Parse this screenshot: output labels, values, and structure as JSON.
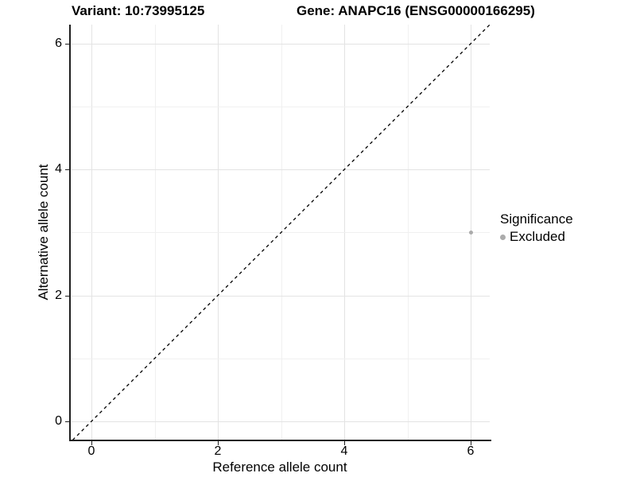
{
  "titles": {
    "variant": "Variant: 10:73995125",
    "gene": "Gene: ANAPC16 (ENSG00000166295)"
  },
  "chart_data": {
    "type": "scatter",
    "title_left": "Variant: 10:73995125",
    "title_right": "Gene: ANAPC16 (ENSG00000166295)",
    "xlabel": "Reference allele count",
    "ylabel": "Alternative allele count",
    "xlim": [
      -0.34,
      6.3
    ],
    "ylim": [
      -0.3,
      6.3
    ],
    "x_ticks": [
      0,
      2,
      4,
      6
    ],
    "y_ticks": [
      0,
      2,
      4,
      6
    ],
    "grid": true,
    "reference_line": {
      "type": "identity",
      "slope": 1,
      "intercept": 0,
      "style": "dashed",
      "color": "#000000"
    },
    "series": [
      {
        "name": "Excluded",
        "color": "#ababab",
        "points": [
          {
            "x": 6,
            "y": 3
          }
        ]
      }
    ],
    "legend": {
      "position": "right",
      "title": "Significance",
      "entries": [
        {
          "label": "Excluded",
          "color": "#ababab"
        }
      ]
    },
    "colors": {
      "axis": "#1f1f1f",
      "grid_major": "#e3e3e3",
      "grid_minor": "#f0f0f0",
      "point": "#ababab",
      "text": "#000000"
    }
  }
}
